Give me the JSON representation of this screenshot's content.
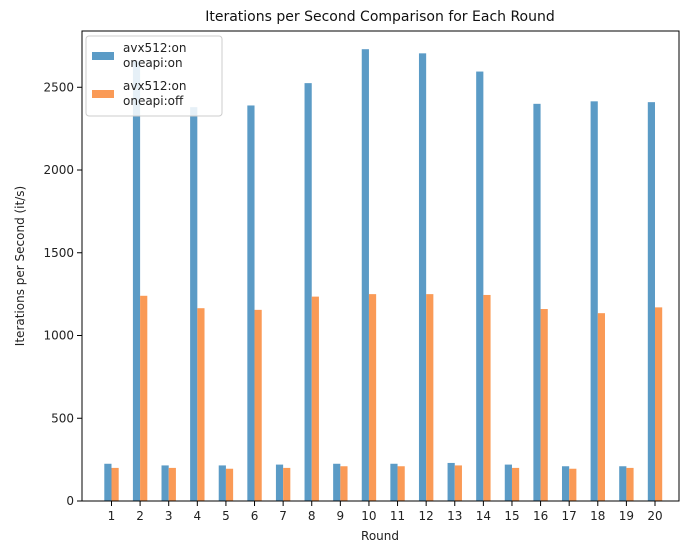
{
  "chart_data": {
    "type": "bar",
    "title": "Iterations per Second Comparison for Each Round",
    "xlabel": "Round",
    "ylabel": "Iterations per Second (it/s)",
    "categories": [
      "1",
      "2",
      "3",
      "4",
      "5",
      "6",
      "7",
      "8",
      "9",
      "10",
      "11",
      "12",
      "13",
      "14",
      "15",
      "16",
      "17",
      "18",
      "19",
      "20"
    ],
    "ylim": [
      0,
      2840
    ],
    "yticks": [
      0,
      500,
      1000,
      1500,
      2000,
      2500
    ],
    "grid": false,
    "legend_position": "top-left",
    "series": [
      {
        "name": "avx512:on\noneapi:on",
        "label_lines": [
          "avx512:on",
          "oneapi:on"
        ],
        "color": "#5b9bc6",
        "values": [
          225,
          2660,
          215,
          2380,
          215,
          2390,
          220,
          2525,
          225,
          2730,
          225,
          2705,
          230,
          2595,
          220,
          2400,
          210,
          2415,
          210,
          2410
        ]
      },
      {
        "name": "avx512:on\noneapi:off",
        "label_lines": [
          "avx512:on",
          "oneapi:off"
        ],
        "color": "#fa9a56",
        "values": [
          200,
          1240,
          200,
          1165,
          195,
          1155,
          200,
          1235,
          210,
          1250,
          210,
          1250,
          215,
          1245,
          200,
          1160,
          195,
          1135,
          200,
          1170
        ]
      }
    ]
  }
}
